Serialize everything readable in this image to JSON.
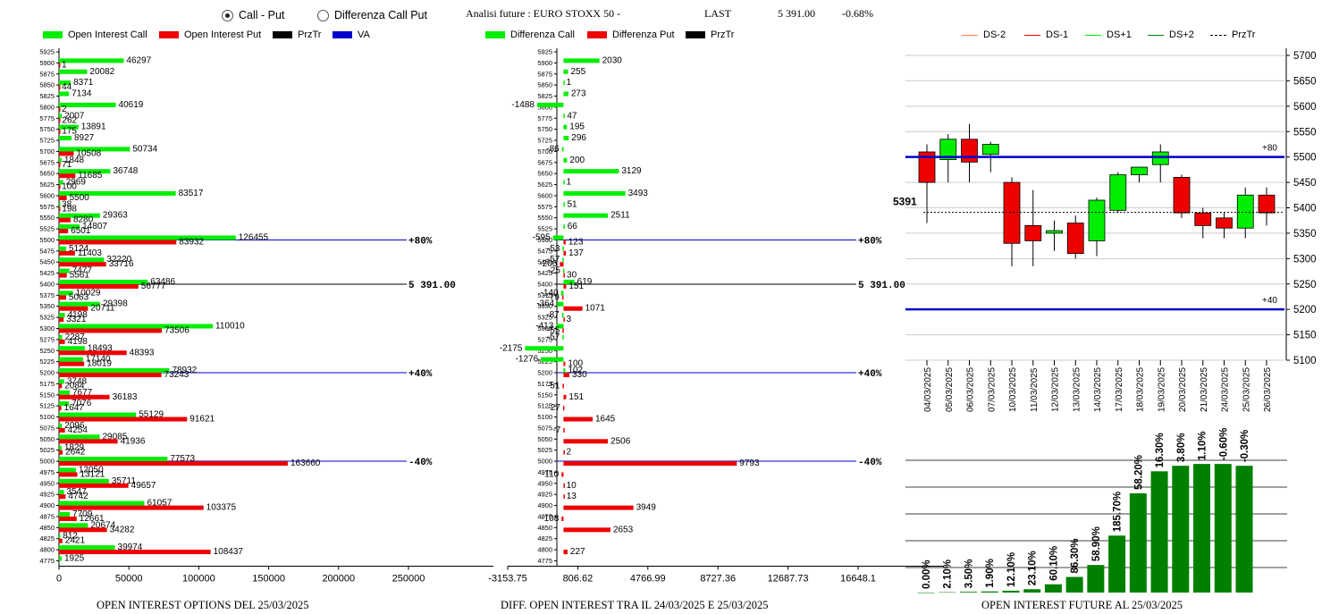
{
  "header": {
    "radio_call_put": "Call - Put",
    "radio_diff": "Differenza Call Put",
    "radio_selected": "call_put",
    "analysis_label": "Analisi future : EURO STOXX 50 -",
    "last_label": "LAST",
    "last_value": "5 391.00",
    "last_change": "-0.68%"
  },
  "legend_oi": {
    "call": "Open Interest Call",
    "put": "Open Interest Put",
    "przt": "PrzTr",
    "va": "VA"
  },
  "legend_diff": {
    "call": "Differenza Call",
    "put": "Differenza Put",
    "przt": "PrzTr"
  },
  "legend_candle": {
    "ds_2": "DS-2",
    "ds_1": "DS-1",
    "ds1": "DS+1",
    "ds2": "DS+2",
    "przt": "PrzTr"
  },
  "captions": {
    "oi": "OPEN INTEREST OPTIONS DEL 25/03/2025",
    "diff": "DIFF. OPEN INTEREST TRA IL 24/03/2025 E 25/03/2025",
    "future": "OPEN INTEREST FUTURE AL 25/03/2025"
  },
  "colors": {
    "call": "#00ee00",
    "put": "#ee0000",
    "blue": "#0000cc",
    "dark_green": "#008000"
  },
  "chart_data": [
    {
      "type": "bar",
      "orientation": "horizontal",
      "title": "OPEN INTEREST OPTIONS DEL 25/03/2025",
      "strikes": [
        5925,
        5900,
        5875,
        5850,
        5825,
        5800,
        5775,
        5750,
        5725,
        5700,
        5675,
        5650,
        5625,
        5600,
        5575,
        5550,
        5525,
        5500,
        5475,
        5450,
        5425,
        5400,
        5375,
        5350,
        5325,
        5300,
        5275,
        5250,
        5225,
        5200,
        5175,
        5150,
        5125,
        5100,
        5075,
        5050,
        5025,
        5000,
        4975,
        4950,
        4925,
        4900,
        4875,
        4850,
        4825,
        4800,
        4775
      ],
      "series": [
        {
          "name": "Open Interest Call",
          "values": [
            null,
            46297,
            20082,
            8371,
            7134,
            40619,
            2007,
            13891,
            8927,
            50734,
            1848,
            36748,
            2969,
            83517,
            38,
            29363,
            14807,
            126455,
            5124,
            32220,
            7477,
            63486,
            10029,
            29398,
            4198,
            110010,
            2287,
            18493,
            17140,
            78932,
            3748,
            7677,
            7076,
            55129,
            2096,
            29085,
            1829,
            77573,
            12050,
            35711,
            3547,
            61057,
            7709,
            20674,
            812,
            39974,
            1925
          ]
        },
        {
          "name": "Open Interest Put",
          "values": [
            null,
            1,
            null,
            44,
            null,
            2,
            262,
            175,
            null,
            10508,
            71,
            11685,
            100,
            5500,
            198,
            8280,
            6501,
            83932,
            11403,
            33716,
            5561,
            56777,
            5063,
            20711,
            3321,
            73506,
            4198,
            48393,
            18019,
            73243,
            2084,
            36183,
            1647,
            91621,
            4254,
            41936,
            2642,
            163660,
            13121,
            49657,
            4742,
            103375,
            12661,
            34282,
            2421,
            108437,
            null
          ]
        }
      ],
      "xlim": [
        0,
        250000
      ],
      "xticks": [
        "0",
        "50000",
        "100000",
        "150000",
        "200000",
        "250000"
      ],
      "markers": [
        {
          "strike": 5500,
          "label": "+80%"
        },
        {
          "strike": 5400,
          "label": "5 391.00"
        },
        {
          "strike": 5200,
          "label": "+40%"
        },
        {
          "strike": 5000,
          "label": "-40%"
        }
      ]
    },
    {
      "type": "bar",
      "orientation": "horizontal",
      "title": "DIFF. OPEN INTEREST TRA IL 24/03/2025 E 25/03/2025",
      "strikes": [
        5925,
        5900,
        5875,
        5850,
        5825,
        5800,
        5775,
        5750,
        5725,
        5700,
        5675,
        5650,
        5625,
        5600,
        5575,
        5550,
        5525,
        5500,
        5475,
        5450,
        5425,
        5400,
        5375,
        5350,
        5325,
        5300,
        5275,
        5250,
        5225,
        5200,
        5175,
        5150,
        5125,
        5100,
        5075,
        5050,
        5025,
        5000,
        4975,
        4950,
        4925,
        4900,
        4875,
        4850,
        4825,
        4800,
        4775
      ],
      "series": [
        {
          "name": "Differenza Call",
          "values": [
            null,
            2030,
            255,
            1,
            273,
            -1488,
            47,
            195,
            296,
            -86,
            200,
            3129,
            1,
            3493,
            51,
            2511,
            66,
            -595,
            -53,
            -57,
            -25,
            619,
            -140,
            -364,
            -87,
            -413,
            -57,
            -2175,
            -1276,
            102,
            null,
            null,
            null,
            null,
            null,
            null,
            null,
            null,
            null,
            null,
            null,
            null,
            null,
            null,
            null,
            null,
            null
          ]
        },
        {
          "name": "Differenza Put",
          "values": [
            null,
            null,
            null,
            null,
            null,
            null,
            null,
            null,
            null,
            null,
            null,
            null,
            null,
            null,
            null,
            null,
            null,
            123,
            137,
            -206,
            30,
            151,
            -79,
            1071,
            3,
            -55,
            null,
            null,
            100,
            330,
            -51,
            151,
            -27,
            1645,
            -7,
            2506,
            2,
            9793,
            -110,
            10,
            13,
            3949,
            -108,
            2653,
            null,
            227,
            null
          ]
        }
      ],
      "xlim": [
        -3153.75,
        16648.1
      ],
      "xticks": [
        "-3153.75",
        "806.62",
        "4766.99",
        "8727.36",
        "12687.73",
        "16648.1"
      ],
      "markers": [
        {
          "strike": 5500,
          "label": "+80%"
        },
        {
          "strike": 5400,
          "label": "5 391.00"
        },
        {
          "strike": 5200,
          "label": "+40%"
        },
        {
          "strike": 5000,
          "label": "-40%"
        }
      ]
    },
    {
      "type": "candlestick",
      "dates": [
        "04/03/2025",
        "05/03/2025",
        "06/03/2025",
        "07/03/2025",
        "10/03/2025",
        "11/03/2025",
        "12/03/2025",
        "13/03/2025",
        "14/03/2025",
        "17/03/2025",
        "18/03/2025",
        "19/03/2025",
        "20/03/2025",
        "21/03/2025",
        "24/03/2025",
        "25/03/2025",
        "26/03/2025"
      ],
      "candles": [
        {
          "o": 5510,
          "h": 5525,
          "l": 5370,
          "c": 5450
        },
        {
          "o": 5495,
          "h": 5545,
          "l": 5450,
          "c": 5535
        },
        {
          "o": 5535,
          "h": 5565,
          "l": 5450,
          "c": 5490
        },
        {
          "o": 5505,
          "h": 5530,
          "l": 5470,
          "c": 5525
        },
        {
          "o": 5450,
          "h": 5460,
          "l": 5285,
          "c": 5330
        },
        {
          "o": 5365,
          "h": 5435,
          "l": 5285,
          "c": 5335
        },
        {
          "o": 5350,
          "h": 5375,
          "l": 5315,
          "c": 5355
        },
        {
          "o": 5370,
          "h": 5385,
          "l": 5300,
          "c": 5310
        },
        {
          "o": 5335,
          "h": 5420,
          "l": 5305,
          "c": 5415
        },
        {
          "o": 5395,
          "h": 5470,
          "l": 5390,
          "c": 5465
        },
        {
          "o": 5465,
          "h": 5475,
          "l": 5450,
          "c": 5480
        },
        {
          "o": 5485,
          "h": 5525,
          "l": 5450,
          "c": 5510
        },
        {
          "o": 5460,
          "h": 5465,
          "l": 5380,
          "c": 5390
        },
        {
          "o": 5390,
          "h": 5400,
          "l": 5340,
          "c": 5365
        },
        {
          "o": 5380,
          "h": 5390,
          "l": 5340,
          "c": 5360
        },
        {
          "o": 5360,
          "h": 5440,
          "l": 5340,
          "c": 5425
        },
        {
          "o": 5425,
          "h": 5440,
          "l": 5365,
          "c": 5390
        }
      ],
      "ylim": [
        5100,
        5700
      ],
      "yticks": [
        "5100",
        "5150",
        "5200",
        "5250",
        "5300",
        "5350",
        "5400",
        "5450",
        "5500",
        "5550",
        "5600",
        "5650",
        "5700"
      ],
      "lines": [
        {
          "value": 5500,
          "label": "+80"
        },
        {
          "value": 5200,
          "label": "+40"
        },
        {
          "value": 5391,
          "label": "5391"
        }
      ]
    },
    {
      "type": "bar",
      "title": "OPEN INTEREST FUTURE AL 25/03/2025",
      "labels": [
        "0.00%",
        "2.10%",
        "3.50%",
        "1.90%",
        "12.10%",
        "23.10%",
        "60.10%",
        "86.30%",
        "58.90%",
        "185.70%",
        "58.20%",
        "16.30%",
        "3.80%",
        "1.10%",
        "-0.60%",
        "-0.30%"
      ],
      "values": [
        0,
        0.2,
        0.4,
        0.6,
        1,
        1.8,
        4.5,
        8.5,
        15,
        31,
        54,
        66,
        69,
        70,
        70,
        69
      ],
      "ylim": [
        0,
        72
      ]
    }
  ]
}
